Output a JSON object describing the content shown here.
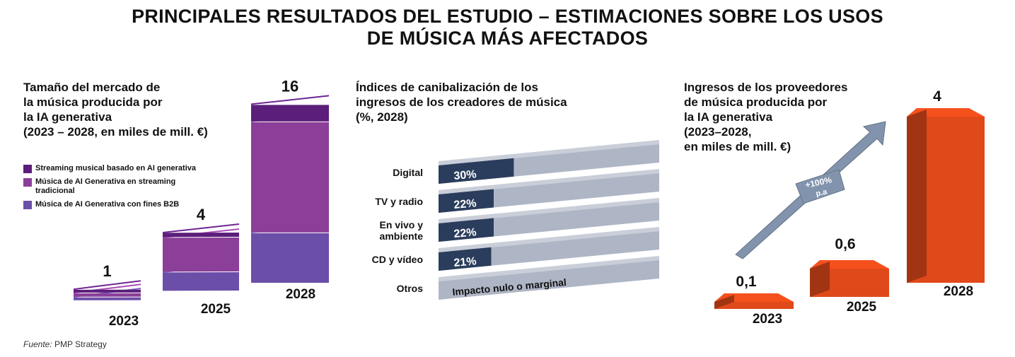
{
  "title": {
    "line1": "PRINCIPALES RESULTADOS DEL ESTUDIO – ESTIMACIONES SOBRE LOS USOS",
    "line2": "DE MÚSICA MÁS AFECTADOS"
  },
  "source": {
    "label": "Fuente:",
    "text": "PMP Strategy"
  },
  "colors": {
    "dark_purple": "#5b1e7a",
    "mid_purple": "#8b3f98",
    "light_purple": "#6b4ea8",
    "navy": "#2b3d5c",
    "grey_bar": "#aeb6c6",
    "orange": "#e0491a",
    "arrow": "#8294ad"
  },
  "chart_data": [
    {
      "type": "bar",
      "stacked": true,
      "title": [
        "Tamaño del mercado de",
        "la música producida por",
        "la IA generativa",
        "(2023 – 2028, en miles de mill. €)"
      ],
      "categories": [
        "2023",
        "2025",
        "2028"
      ],
      "totals": [
        "1",
        "4",
        "16"
      ],
      "series": [
        {
          "name": "Streaming musical basado en AI generativa",
          "values": [
            0.3,
            0.3,
            1.5
          ]
        },
        {
          "name": "Música de AI Generativa en streaming tradicional",
          "values": [
            0.4,
            2.4,
            10.0
          ]
        },
        {
          "name": "Música de AI Generativa con fines B2B",
          "values": [
            0.3,
            1.3,
            4.5
          ]
        }
      ],
      "legend": [
        {
          "label": "Streaming musical basado en AI generativa"
        },
        {
          "label": "Música de AI Generativa en streaming tradicional",
          "label_line1": "Música de AI Generativa en streaming",
          "label_line2": "tradicional"
        },
        {
          "label": "Música de AI Generativa con fines B2B"
        }
      ],
      "legend_position": "left"
    },
    {
      "type": "bar",
      "orientation": "horizontal",
      "title": [
        "Índices de canibalización de los",
        "ingresos de los creadores de música",
        "(%, 2028)"
      ],
      "categories": [
        {
          "label": [
            "Digital"
          ],
          "value": 30,
          "value_label": "30%"
        },
        {
          "label": [
            "TV y radio"
          ],
          "value": 22,
          "value_label": "22%"
        },
        {
          "label": [
            "En vivo y",
            "ambiente"
          ],
          "value": 22,
          "value_label": "22%"
        },
        {
          "label": [
            "CD y vídeo"
          ],
          "value": 21,
          "value_label": "21%"
        },
        {
          "label": [
            "Otros"
          ],
          "value": 0,
          "value_label": "Impacto nulo o marginal"
        }
      ],
      "xlim": [
        0,
        100
      ]
    },
    {
      "type": "bar",
      "title": [
        "Ingresos de los proveedores",
        "de música producida por",
        "la IA generativa",
        "(2023–2028,",
        "en miles de mill. €)"
      ],
      "categories": [
        "2023",
        "2025",
        "2028"
      ],
      "values": [
        0.1,
        0.6,
        4
      ],
      "value_labels": [
        "0,1",
        "0,6",
        "4"
      ],
      "annotation": {
        "line1": "+100%",
        "line2": "p.a"
      }
    }
  ]
}
